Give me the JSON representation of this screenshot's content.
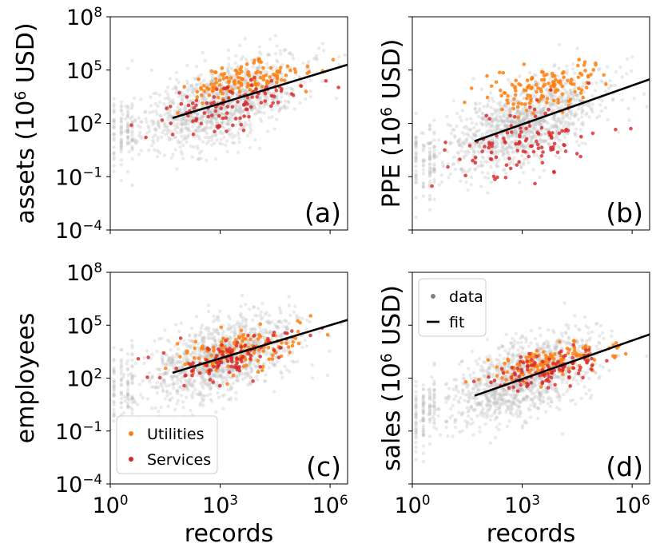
{
  "colors": {
    "data": "#bfbfbf",
    "legend_data": "#808080",
    "utilities": "#ff7f0e",
    "services": "#d62728",
    "fit": "#000000"
  },
  "chart_data": [
    {
      "type": "scatter",
      "panel_tag": "(a)",
      "ylabel_prefix": "assets (10",
      "ylabel_sup": "6",
      "ylabel_suffix": " USD)",
      "xscale": "log",
      "yscale": "log",
      "xlim": [
        1,
        3000000
      ],
      "ylim": [
        0.0001,
        100000000
      ],
      "yticks": [
        {
          "base": "10",
          "exp": "8"
        },
        {
          "base": "10",
          "exp": "5"
        },
        {
          "base": "10",
          "exp": "2"
        },
        {
          "base": "10",
          "exp": "−1"
        },
        {
          "base": "10",
          "exp": "−4"
        }
      ],
      "fit": {
        "x": [
          50,
          3000000
        ],
        "y": [
          200,
          200000
        ]
      },
      "utilities_center": {
        "logx": 3.6,
        "logy": 4.4,
        "spread": [
          0.9,
          0.45
        ]
      },
      "services_center": {
        "logx": 3.2,
        "logy": 3.0,
        "spread": [
          0.9,
          0.7
        ]
      },
      "seed": 11
    },
    {
      "type": "scatter",
      "panel_tag": "(b)",
      "ylabel_prefix": "PPE (10",
      "ylabel_sup": "6",
      "ylabel_suffix": " USD)",
      "xscale": "log",
      "yscale": "log",
      "xlim": [
        1,
        3000000
      ],
      "ylim": [
        0.0001,
        100000000
      ],
      "fit": {
        "x": [
          50,
          3000000
        ],
        "y": [
          10,
          30000
        ]
      },
      "utilities_center": {
        "logx": 3.7,
        "logy": 4.0,
        "spread": [
          0.9,
          0.6
        ]
      },
      "services_center": {
        "logx": 3.0,
        "logy": 1.0,
        "spread": [
          0.9,
          1.0
        ]
      },
      "seed": 23
    },
    {
      "type": "scatter",
      "panel_tag": "(c)",
      "ylabel": "employees",
      "xscale": "log",
      "yscale": "log",
      "xlim": [
        1,
        3000000
      ],
      "ylim": [
        0.0001,
        100000000
      ],
      "xlabel": "records",
      "xticks": [
        {
          "base": "10",
          "exp": "0"
        },
        {
          "base": "10",
          "exp": "3"
        },
        {
          "base": "10",
          "exp": "6"
        }
      ],
      "yticks": [
        {
          "base": "10",
          "exp": "8"
        },
        {
          "base": "10",
          "exp": "5"
        },
        {
          "base": "10",
          "exp": "2"
        },
        {
          "base": "10",
          "exp": "−1"
        },
        {
          "base": "10",
          "exp": "−4"
        }
      ],
      "fit": {
        "x": [
          50,
          3000000
        ],
        "y": [
          200,
          200000
        ]
      },
      "utilities_center": {
        "logx": 3.5,
        "logy": 3.6,
        "spread": [
          0.9,
          0.6
        ]
      },
      "services_center": {
        "logx": 3.4,
        "logy": 3.3,
        "spread": [
          0.9,
          0.6
        ]
      },
      "legend": [
        {
          "label": "Utilities",
          "series": "utilities"
        },
        {
          "label": "Services",
          "series": "services"
        }
      ],
      "seed": 37
    },
    {
      "type": "scatter",
      "panel_tag": "(d)",
      "ylabel_prefix": "sales (10",
      "ylabel_sup": "6",
      "ylabel_suffix": " USD)",
      "xscale": "log",
      "yscale": "log",
      "xlim": [
        1,
        3000000
      ],
      "ylim": [
        0.0001,
        100000000
      ],
      "xlabel": "records",
      "xticks": [
        {
          "base": "10",
          "exp": "0"
        },
        {
          "base": "10",
          "exp": "3"
        },
        {
          "base": "10",
          "exp": "6"
        }
      ],
      "fit": {
        "x": [
          50,
          3000000
        ],
        "y": [
          10,
          30000
        ]
      },
      "utilities_center": {
        "logx": 3.8,
        "logy": 2.9,
        "spread": [
          0.8,
          0.4
        ]
      },
      "services_center": {
        "logx": 3.6,
        "logy": 2.4,
        "spread": [
          0.8,
          0.5
        ]
      },
      "legend": [
        {
          "label": "data",
          "series": "data"
        },
        {
          "label": "fit",
          "series": "fit"
        }
      ],
      "seed": 53
    }
  ]
}
